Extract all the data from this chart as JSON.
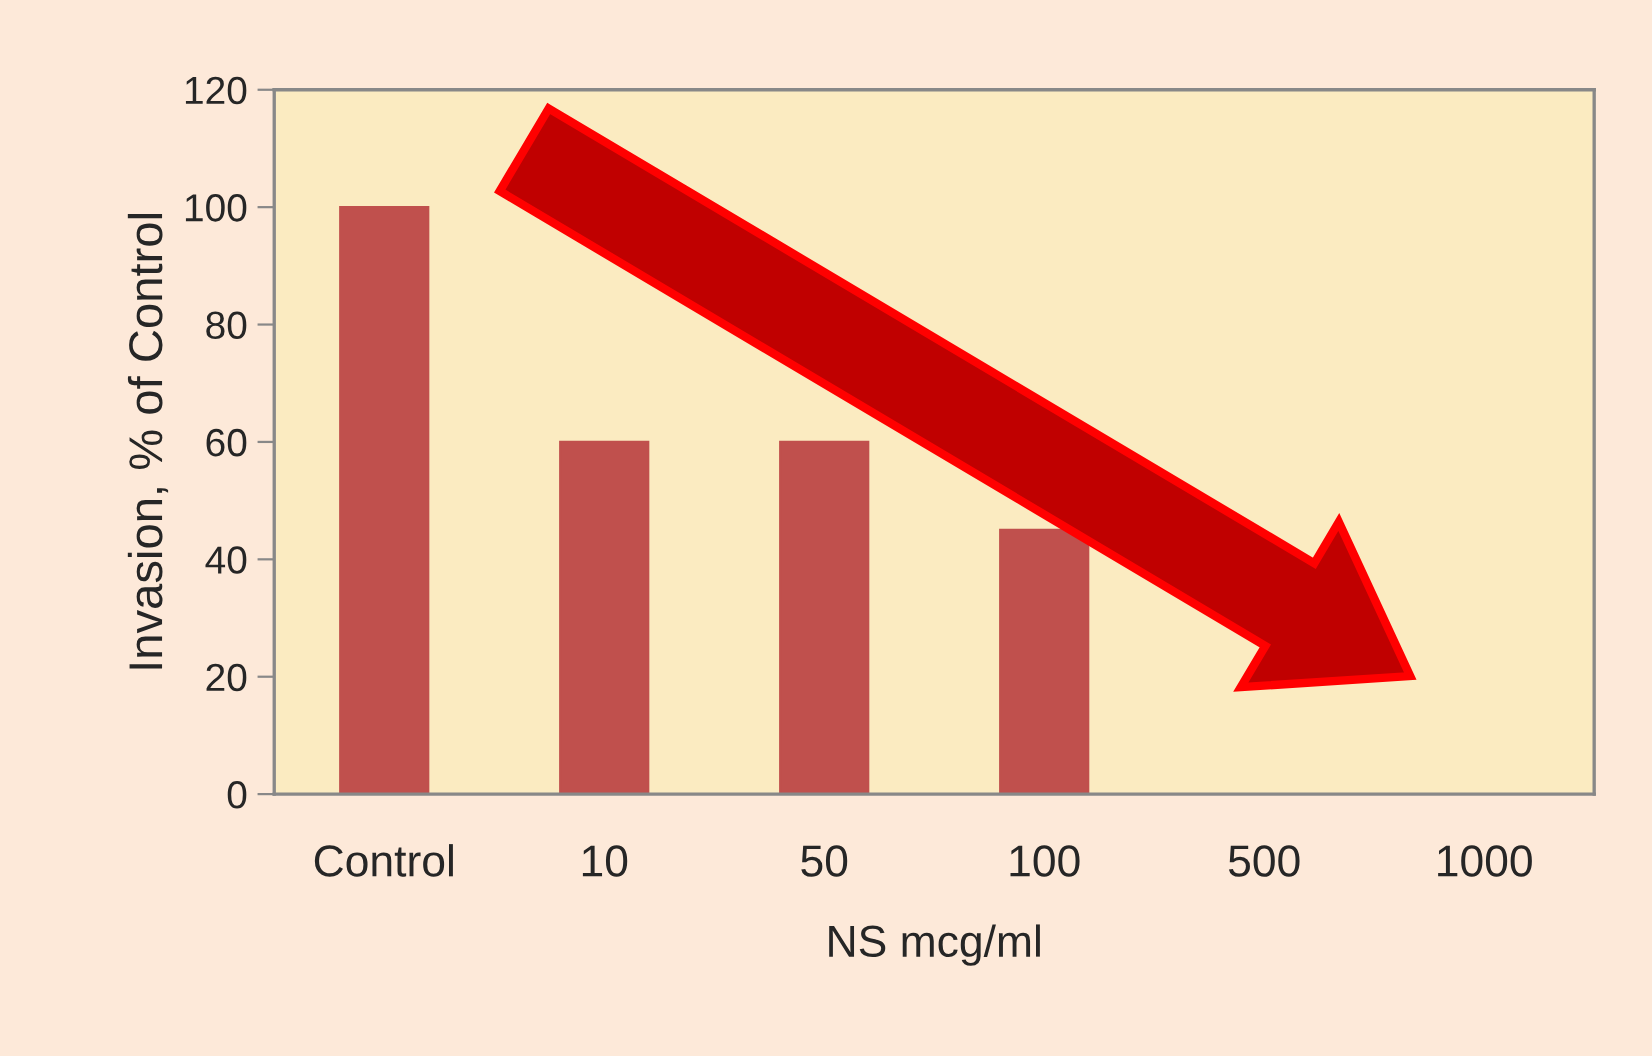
{
  "chart_data": {
    "type": "bar",
    "xlabel": "NS mcg/ml",
    "ylabel": "Invasion, % of Control",
    "categories": [
      "Control",
      "10",
      "50",
      "100",
      "500",
      "1000"
    ],
    "values": [
      100,
      60,
      60,
      45,
      0,
      0
    ],
    "color": "#c0504d",
    "ylim": [
      0,
      120
    ],
    "yticks": [
      0,
      20,
      40,
      60,
      80,
      100,
      120
    ],
    "grid": false,
    "legend": false
  }
}
